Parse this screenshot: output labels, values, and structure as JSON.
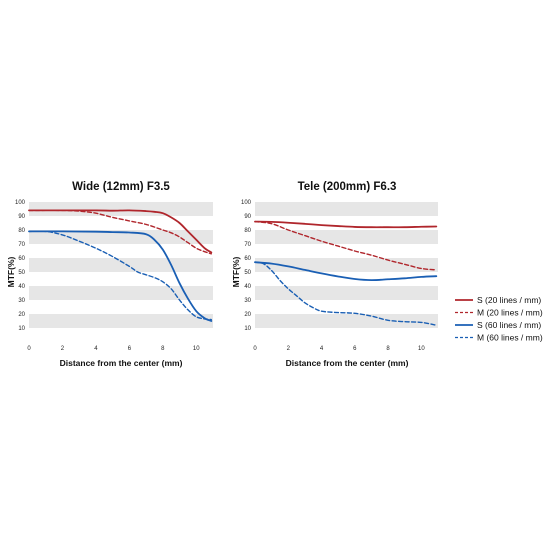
{
  "colors": {
    "red": "#b0262c",
    "blue": "#1a5fb4",
    "band": "#e6e6e6"
  },
  "legend": [
    {
      "label": "S  (20 lines / mm)",
      "color": "#b0262c",
      "dash": false
    },
    {
      "label": "M  (20 lines / mm)",
      "color": "#b0262c",
      "dash": true
    },
    {
      "label": "S  (60 lines / mm)",
      "color": "#1a5fb4",
      "dash": false
    },
    {
      "label": "M  (60 lines / mm)",
      "color": "#1a5fb4",
      "dash": true
    }
  ],
  "chart_data": [
    {
      "type": "line",
      "title": "Wide (12mm) F3.5",
      "xlabel": "Distance from the center (mm)",
      "ylabel": "MTF(%)",
      "xlim": [
        0,
        11
      ],
      "ylim": [
        0,
        100
      ],
      "xticks": [
        0,
        2,
        4,
        6,
        8,
        10
      ],
      "yticks": [
        10,
        20,
        30,
        40,
        50,
        60,
        70,
        80,
        90,
        100
      ],
      "grid": "alternating horizontal bands",
      "series": [
        {
          "name": "S  (20 lines / mm)",
          "color": "#b0262c",
          "dash": false,
          "x": [
            0,
            2,
            4,
            5,
            6,
            7,
            7.5,
            8,
            8.5,
            9,
            9.5,
            10,
            10.5,
            10.9
          ],
          "y": [
            94,
            94,
            94,
            93.8,
            94,
            93.5,
            93,
            92,
            89,
            85,
            79,
            73,
            67,
            64
          ]
        },
        {
          "name": "M  (20 lines / mm)",
          "color": "#b0262c",
          "dash": true,
          "x": [
            0,
            2,
            3,
            4,
            5,
            6,
            7,
            8,
            8.5,
            9,
            9.5,
            10,
            10.5,
            10.9
          ],
          "y": [
            94,
            94,
            93.5,
            92,
            89,
            86.5,
            84,
            80,
            78,
            75,
            71,
            67,
            64.5,
            63
          ]
        },
        {
          "name": "S  (60 lines / mm)",
          "color": "#1a5fb4",
          "dash": false,
          "x": [
            0,
            2,
            4,
            5,
            6,
            7,
            7.5,
            8,
            8.5,
            9,
            9.5,
            10,
            10.5,
            10.9
          ],
          "y": [
            79,
            79,
            78.8,
            78.5,
            78.2,
            77,
            73,
            66,
            55,
            42,
            31,
            22,
            17,
            15
          ]
        },
        {
          "name": "M  (60 lines / mm)",
          "color": "#1a5fb4",
          "dash": true,
          "x": [
            0,
            1,
            2,
            3,
            4,
            5,
            6,
            6.5,
            7,
            7.5,
            8,
            8.5,
            9,
            9.5,
            10,
            10.5,
            10.9
          ],
          "y": [
            79,
            79,
            76.5,
            72,
            67,
            61,
            54,
            50,
            48,
            46,
            43,
            38,
            30,
            23,
            18,
            16.5,
            16
          ]
        }
      ]
    },
    {
      "type": "line",
      "title": "Tele (200mm) F6.3",
      "xlabel": "Distance from the center (mm)",
      "ylabel": "MTF(%)",
      "xlim": [
        0,
        11
      ],
      "ylim": [
        0,
        100
      ],
      "xticks": [
        0,
        2,
        4,
        6,
        8,
        10
      ],
      "yticks": [
        10,
        20,
        30,
        40,
        50,
        60,
        70,
        80,
        90,
        100
      ],
      "grid": "alternating horizontal bands",
      "series": [
        {
          "name": "S  (20 lines / mm)",
          "color": "#b0262c",
          "dash": false,
          "x": [
            0,
            1,
            2,
            3,
            4,
            5,
            6,
            7,
            8,
            9,
            10,
            10.9
          ],
          "y": [
            86,
            85.8,
            85.2,
            84.4,
            83.5,
            82.8,
            82.2,
            82,
            82,
            82,
            82.3,
            82.5
          ]
        },
        {
          "name": "M  (20 lines / mm)",
          "color": "#b0262c",
          "dash": true,
          "x": [
            0,
            1,
            2,
            3,
            4,
            5,
            6,
            7,
            8,
            9,
            10,
            10.9
          ],
          "y": [
            86,
            84.5,
            80,
            76,
            72,
            68.5,
            65,
            62,
            58.5,
            55.5,
            52.5,
            51.5
          ]
        },
        {
          "name": "S  (60 lines / mm)",
          "color": "#1a5fb4",
          "dash": false,
          "x": [
            0,
            1,
            2,
            3,
            4,
            5,
            6,
            7,
            8,
            9,
            10,
            10.9
          ],
          "y": [
            57,
            56,
            54,
            51.5,
            49,
            46.8,
            45,
            44.2,
            44.8,
            45.5,
            46.5,
            47
          ]
        },
        {
          "name": "M  (60 lines / mm)",
          "color": "#1a5fb4",
          "dash": true,
          "x": [
            0,
            0.5,
            1,
            1.5,
            2,
            2.5,
            3,
            3.5,
            4,
            5,
            6,
            7,
            8,
            9,
            10,
            10.9
          ],
          "y": [
            57,
            56,
            51,
            44,
            38,
            33,
            28,
            24.5,
            22,
            21,
            20.5,
            18.5,
            15.5,
            14.5,
            14,
            12
          ]
        }
      ]
    }
  ]
}
